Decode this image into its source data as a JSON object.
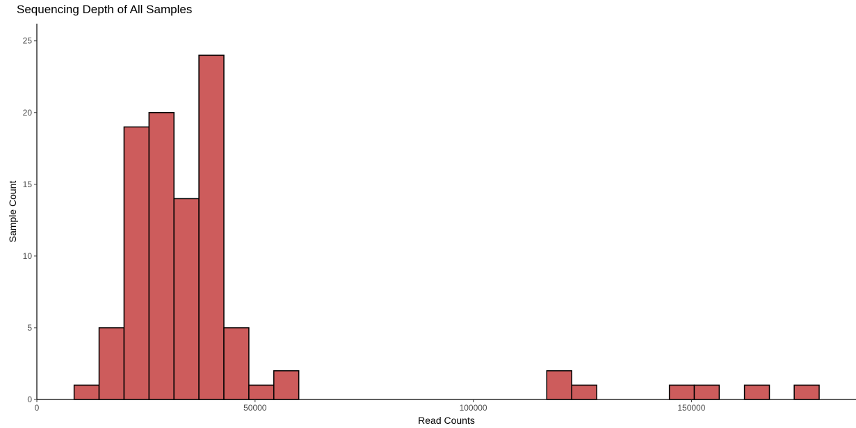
{
  "chart_data": {
    "type": "bar",
    "title": "Sequencing Depth of All Samples",
    "xlabel": "Read Counts",
    "ylabel": "Sample Count",
    "xlim": [
      0,
      187700
    ],
    "ylim": [
      0,
      26.2
    ],
    "bin_width": 5720,
    "x_ticks": [
      0,
      50000,
      100000,
      150000
    ],
    "x_tick_labels": [
      "0",
      "50000",
      "100000",
      "150000"
    ],
    "y_ticks": [
      0,
      5,
      10,
      15,
      20,
      25
    ],
    "y_tick_labels": [
      "0",
      "5",
      "10",
      "15",
      "20",
      "25"
    ],
    "bins": [
      {
        "x": 11400,
        "count": 1
      },
      {
        "x": 17120,
        "count": 5
      },
      {
        "x": 22840,
        "count": 19
      },
      {
        "x": 28560,
        "count": 20
      },
      {
        "x": 34280,
        "count": 14
      },
      {
        "x": 40000,
        "count": 24
      },
      {
        "x": 45720,
        "count": 5
      },
      {
        "x": 51440,
        "count": 1
      },
      {
        "x": 57160,
        "count": 2
      },
      {
        "x": 119700,
        "count": 2
      },
      {
        "x": 125420,
        "count": 1
      },
      {
        "x": 147800,
        "count": 1
      },
      {
        "x": 153500,
        "count": 1
      },
      {
        "x": 165000,
        "count": 1
      },
      {
        "x": 176400,
        "count": 1
      }
    ],
    "fill_color": "#cd5c5c",
    "edge_color": "#000000",
    "grid": false,
    "legend": "none"
  }
}
